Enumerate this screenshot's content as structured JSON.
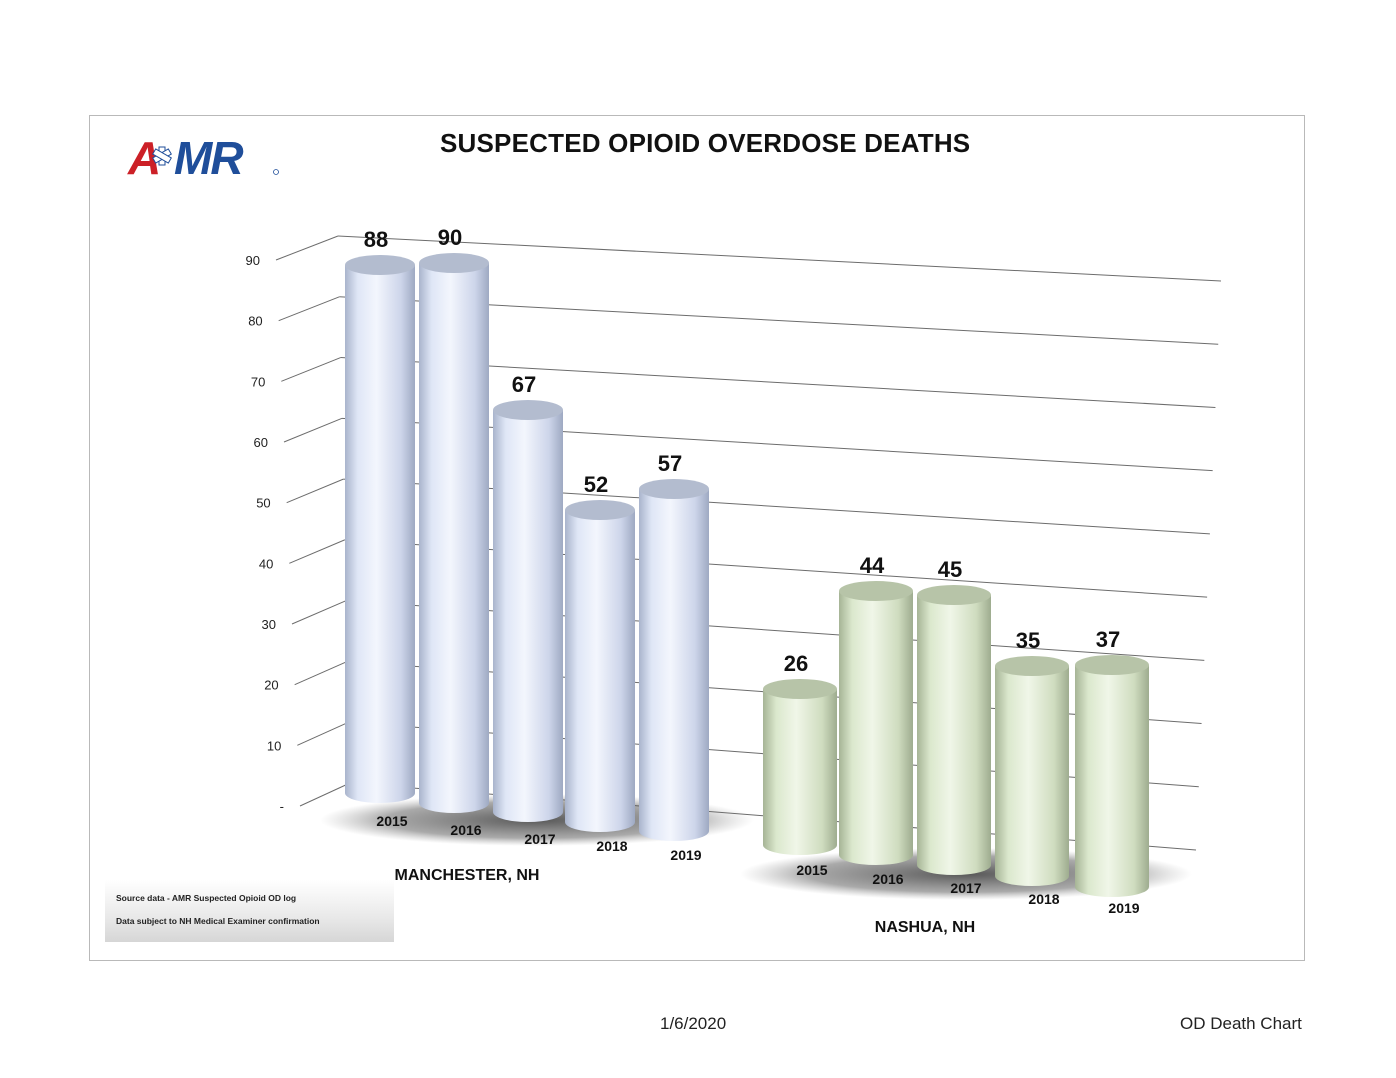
{
  "title": "SUSPECTED OPIOID OVERDOSE DEATHS",
  "logo_text": "AMR",
  "notes": {
    "line1": "Source data - AMR Suspected Opioid OD log",
    "line2": "Data subject to NH Medical Examiner confirmation"
  },
  "footer": {
    "date": "1/6/2020",
    "label": "OD Death Chart"
  },
  "colors": {
    "manchester": "#d5dcf0",
    "nashua": "#d7e6c6",
    "logo_red": "#cc2027",
    "logo_blue": "#1f4e9a"
  },
  "chart_data": {
    "type": "bar",
    "style": "3d-cylinder",
    "title": "SUSPECTED OPIOID OVERDOSE DEATHS",
    "ylim": [
      0,
      90
    ],
    "y_ticks": [
      "-",
      "10",
      "20",
      "30",
      "40",
      "50",
      "60",
      "70",
      "80",
      "90"
    ],
    "grid": true,
    "legend": "none",
    "groups": [
      {
        "name": "MANCHESTER, NH",
        "categories": [
          "2015",
          "2016",
          "2017",
          "2018",
          "2019"
        ],
        "values": [
          88,
          90,
          67,
          52,
          57
        ]
      },
      {
        "name": "NASHUA, NH",
        "categories": [
          "2015",
          "2016",
          "2017",
          "2018",
          "2019"
        ],
        "values": [
          26,
          44,
          45,
          35,
          37
        ]
      }
    ]
  }
}
